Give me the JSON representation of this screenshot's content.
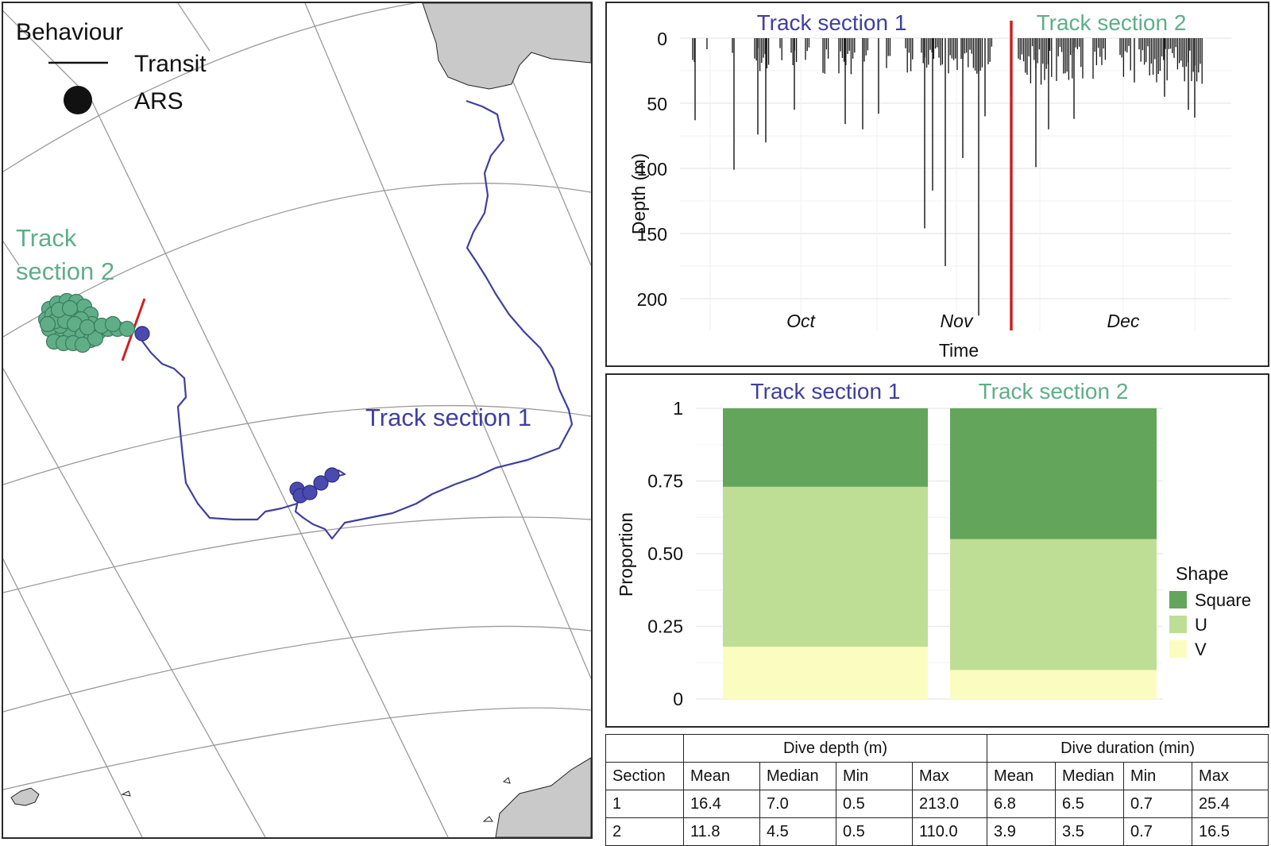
{
  "map": {
    "legend": {
      "title": "Behaviour",
      "items": [
        {
          "label": "Transit",
          "symbol": "line"
        },
        {
          "label": "ARS",
          "symbol": "dot"
        }
      ]
    },
    "labels": {
      "section1": "Track section 1",
      "section2": [
        "Track",
        "section 2"
      ]
    },
    "colors": {
      "section1": "#3f3f9e",
      "section2": "#5fae88",
      "divider": "#cc2222",
      "land": "#c9c9c9",
      "grid": "#9a9a9a"
    }
  },
  "chart_data": [
    {
      "type": "bar",
      "subtype": "dive-profile",
      "title": "",
      "xlabel": "Time",
      "ylabel": "Depth (m)",
      "yticks": [
        0,
        50,
        100,
        150,
        200
      ],
      "ylim": [
        0,
        215
      ],
      "y_reversed": true,
      "xticks": [
        "Oct",
        "Nov",
        "Dec"
      ],
      "section_labels": [
        "Track section 1",
        "Track section 2"
      ],
      "section_colors": [
        "#3f3f9e",
        "#5fae88"
      ],
      "divider_color": "#cc2222",
      "notable_max_depths": [
        {
          "period": "early Sep",
          "depth": 63
        },
        {
          "period": "late Sep",
          "depth": 101
        },
        {
          "period": "early Nov",
          "depth": 146
        },
        {
          "period": "early Nov",
          "depth": 175
        },
        {
          "period": "mid Nov",
          "depth": 213
        },
        {
          "period": "late Nov",
          "depth": 99
        }
      ]
    },
    {
      "type": "bar",
      "subtype": "stacked-proportion",
      "ylabel": "Proportion",
      "yticks": [
        "0",
        "0.25",
        "0.50",
        "0.75",
        "1"
      ],
      "ylim": [
        0,
        1
      ],
      "categories": [
        "Track section 1",
        "Track section 2"
      ],
      "category_colors": [
        "#3f3f9e",
        "#5fae88"
      ],
      "series": [
        {
          "name": "V",
          "values": [
            0.18,
            0.1
          ],
          "color": "#fbfdc0"
        },
        {
          "name": "U",
          "values": [
            0.55,
            0.45
          ],
          "color": "#bfde95"
        },
        {
          "name": "Square",
          "values": [
            0.27,
            0.45
          ],
          "color": "#64a55c"
        }
      ],
      "legend": {
        "title": "Shape",
        "order": [
          "Square",
          "U",
          "V"
        ],
        "placement": "right"
      }
    }
  ],
  "table": {
    "group_headers": [
      "Dive depth (m)",
      "Dive duration (min)"
    ],
    "sub_headers": [
      "Section",
      "Mean",
      "Median",
      "Min",
      "Max",
      "Mean",
      "Median",
      "Min",
      "Max"
    ],
    "rows": [
      [
        "1",
        "16.4",
        "7.0",
        "0.5",
        "213.0",
        "6.8",
        "6.5",
        "0.7",
        "25.4"
      ],
      [
        "2",
        "11.8",
        "4.5",
        "0.5",
        "110.0",
        "3.9",
        "3.5",
        "0.7",
        "16.5"
      ]
    ]
  }
}
